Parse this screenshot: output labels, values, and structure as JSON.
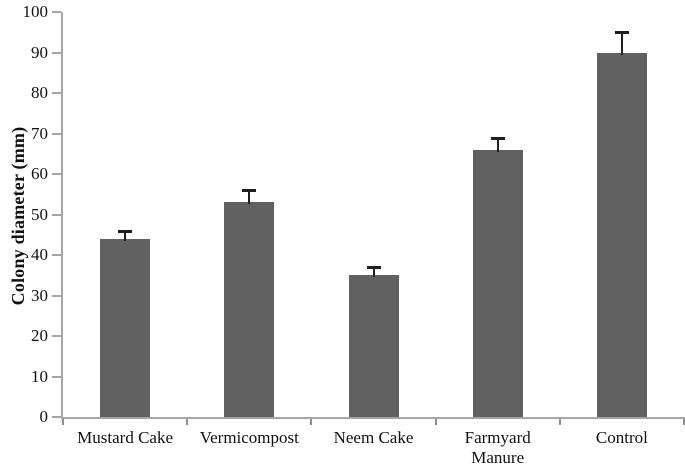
{
  "chart_data": {
    "type": "bar",
    "categories": [
      "Mustard Cake",
      "Vermicompost",
      "Neem Cake",
      "Farmyard Manure",
      "Control"
    ],
    "values": [
      44,
      53,
      35,
      66,
      90
    ],
    "errors_plus": [
      2,
      3,
      2,
      3,
      5
    ],
    "title": "",
    "xlabel": "",
    "ylabel": "Colony diameter (mm)",
    "ylim": [
      0,
      100
    ],
    "ytick_step": 10,
    "ytick_labels": [
      "0",
      "10",
      "20",
      "30",
      "40",
      "50",
      "60",
      "70",
      "80",
      "90",
      "100"
    ],
    "grid": false,
    "legend_position": "none",
    "colors": {
      "bar": "#616161",
      "axis": "#a6a6a6",
      "x_tick": "#8c8c8c",
      "error_bar": "#1f1f1f",
      "text": "#111111",
      "background": "#ffffff"
    }
  }
}
